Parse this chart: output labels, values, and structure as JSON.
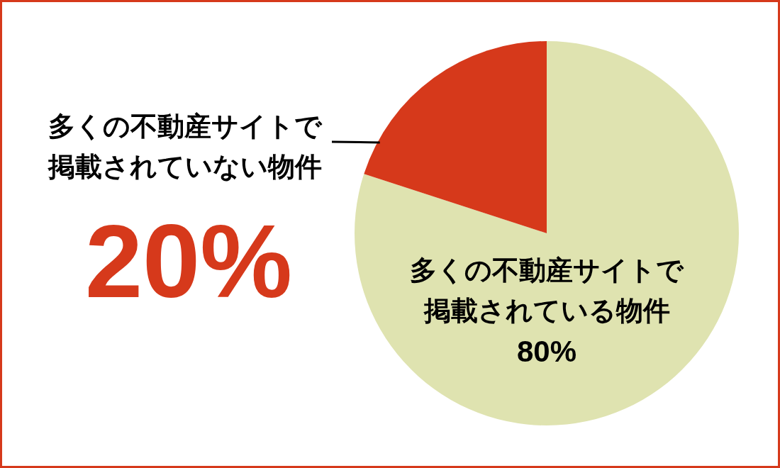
{
  "chart_data": {
    "type": "pie",
    "categories": [
      "多くの不動産サイトで掲載されている物件",
      "多くの不動産サイトで掲載されていない物件"
    ],
    "values": [
      80,
      20
    ],
    "colors": [
      "#dfe3b0",
      "#d6391b"
    ],
    "value_labels": [
      "80%",
      "20%"
    ]
  }
}
